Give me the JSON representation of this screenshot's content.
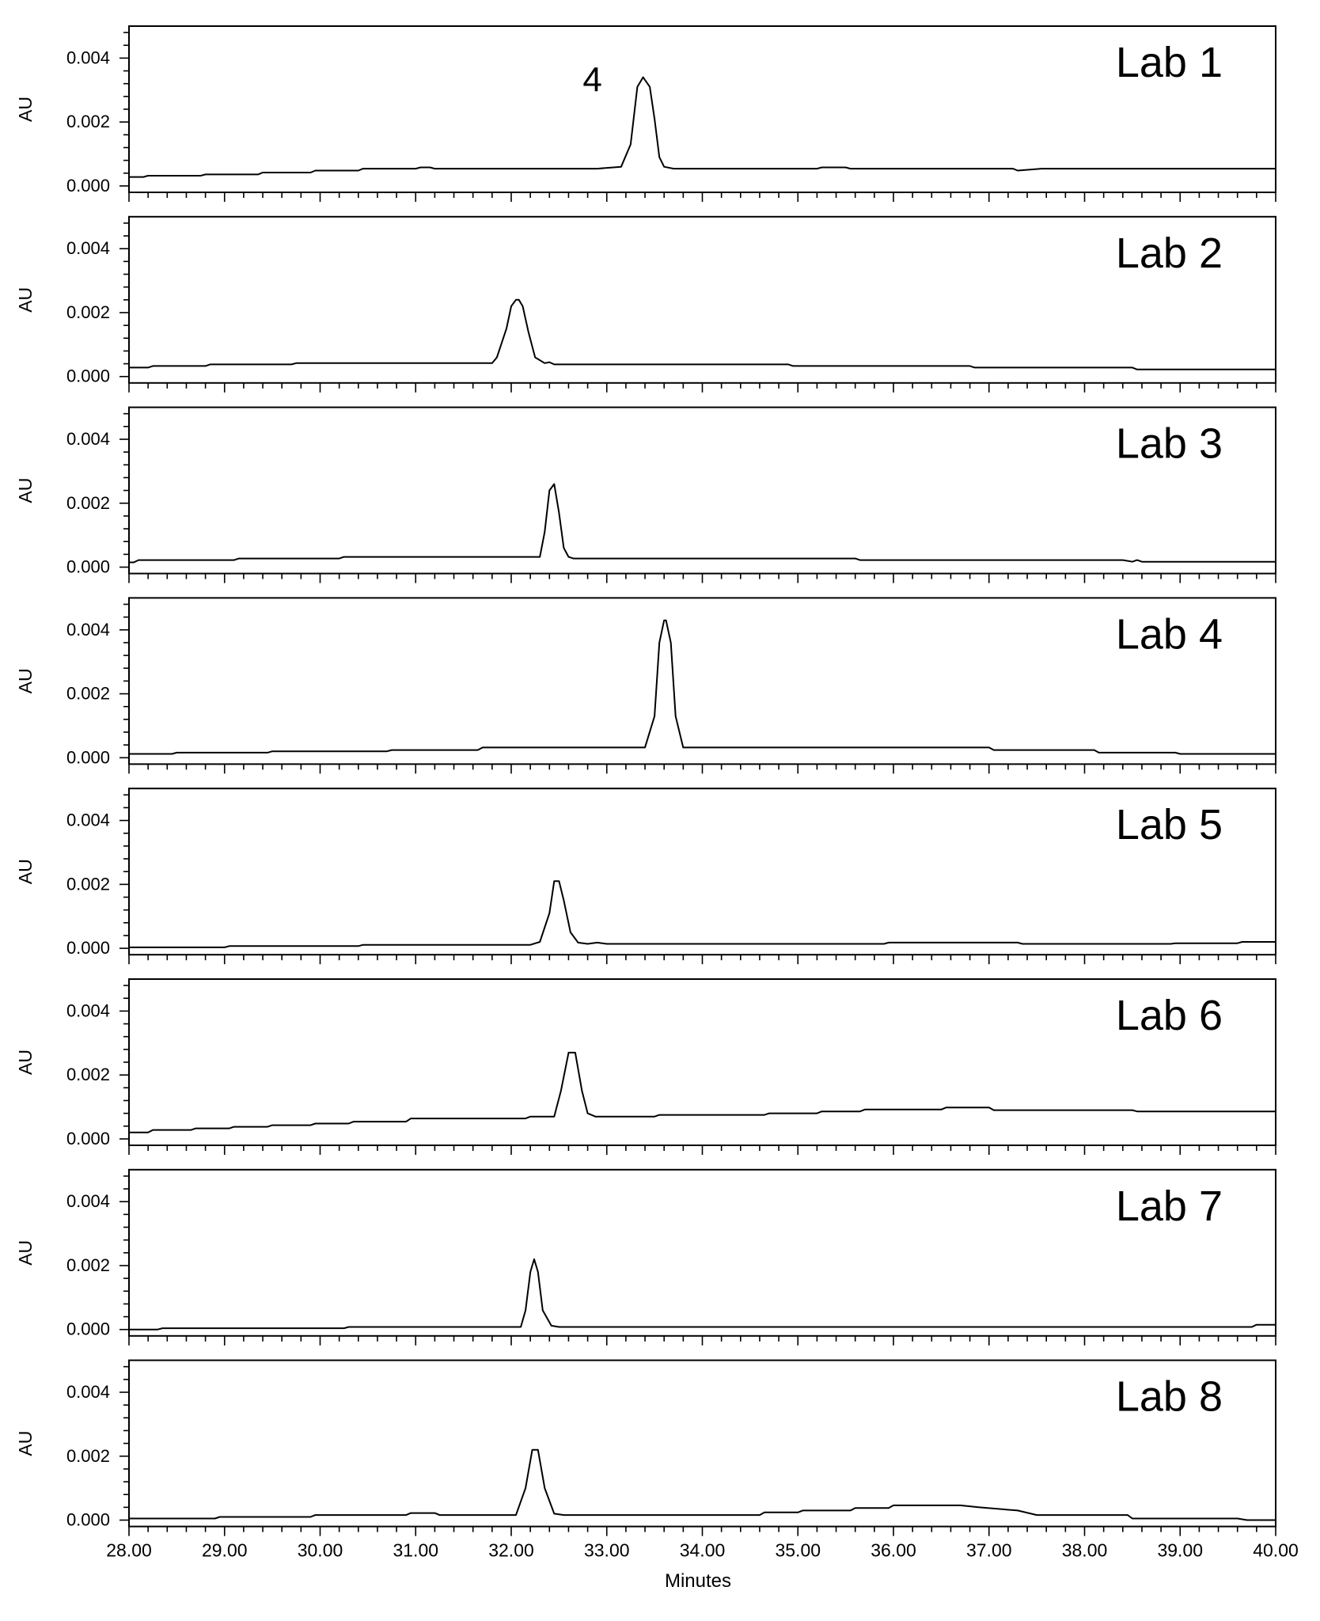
{
  "chart_data": {
    "type": "line",
    "xlabel": "Minutes",
    "ylabel": "AU",
    "xlim": [
      28.0,
      40.0
    ],
    "ylim": [
      -0.0002,
      0.005
    ],
    "x_ticks": [
      28.0,
      29.0,
      30.0,
      31.0,
      32.0,
      33.0,
      34.0,
      35.0,
      36.0,
      37.0,
      38.0,
      39.0,
      40.0
    ],
    "x_tick_labels": [
      "28.00",
      "29.00",
      "30.00",
      "31.00",
      "32.00",
      "33.00",
      "34.00",
      "35.00",
      "36.00",
      "37.00",
      "38.00",
      "39.00",
      "40.00"
    ],
    "y_ticks": [
      0.0,
      0.002,
      0.004
    ],
    "y_tick_labels": [
      "0.000",
      "0.002",
      "0.004"
    ],
    "grid": false,
    "line_color": "#000000",
    "series": [
      {
        "name": "Lab 1",
        "x": [
          28.0,
          28.15,
          28.2,
          28.75,
          28.8,
          29.35,
          29.4,
          29.9,
          29.95,
          30.4,
          30.45,
          31.0,
          31.05,
          31.15,
          31.2,
          32.2,
          32.9,
          33.15,
          33.25,
          33.32,
          33.38,
          33.45,
          33.5,
          33.55,
          33.6,
          33.7,
          35.2,
          35.25,
          35.5,
          35.55,
          37.25,
          37.3,
          37.55,
          38.0,
          40.0
        ],
        "y": [
          0.00028,
          0.00028,
          0.00032,
          0.00032,
          0.00036,
          0.00036,
          0.00042,
          0.00042,
          0.00048,
          0.00048,
          0.00054,
          0.00054,
          0.00058,
          0.00058,
          0.00054,
          0.00054,
          0.00054,
          0.0006,
          0.0013,
          0.0031,
          0.0034,
          0.0031,
          0.0021,
          0.0009,
          0.0006,
          0.00054,
          0.00054,
          0.00058,
          0.00058,
          0.00054,
          0.00054,
          0.00048,
          0.00054,
          0.00054,
          0.00054
        ]
      },
      {
        "name": "Lab 2",
        "x": [
          28.0,
          28.2,
          28.25,
          28.8,
          28.85,
          29.7,
          29.75,
          31.8,
          31.85,
          31.95,
          32.0,
          32.05,
          32.08,
          32.12,
          32.18,
          32.25,
          32.35,
          32.4,
          32.45,
          34.9,
          34.95,
          36.8,
          36.85,
          38.5,
          38.55,
          40.0
        ],
        "y": [
          0.00028,
          0.00028,
          0.00033,
          0.00033,
          0.00038,
          0.00038,
          0.00042,
          0.00042,
          0.0006,
          0.0015,
          0.0022,
          0.0024,
          0.0024,
          0.0022,
          0.0014,
          0.0006,
          0.00042,
          0.00045,
          0.00038,
          0.00038,
          0.00033,
          0.00033,
          0.00028,
          0.00028,
          0.00022,
          0.00022
        ]
      },
      {
        "name": "Lab 3",
        "x": [
          28.0,
          28.05,
          28.1,
          29.1,
          29.15,
          30.2,
          30.25,
          32.3,
          32.35,
          32.4,
          32.45,
          32.5,
          32.55,
          32.6,
          32.65,
          35.6,
          35.65,
          38.4,
          38.5,
          38.55,
          38.6,
          40.0
        ],
        "y": [
          0.00015,
          0.00015,
          0.00022,
          0.00022,
          0.00027,
          0.00027,
          0.00032,
          0.00032,
          0.0011,
          0.0024,
          0.0026,
          0.0017,
          0.0006,
          0.00032,
          0.00027,
          0.00027,
          0.00022,
          0.00022,
          0.00017,
          0.00022,
          0.00017,
          0.00017
        ]
      },
      {
        "name": "Lab 4",
        "x": [
          28.0,
          28.45,
          28.5,
          29.45,
          29.5,
          30.7,
          30.75,
          31.65,
          31.7,
          33.4,
          33.5,
          33.55,
          33.6,
          33.62,
          33.67,
          33.72,
          33.8,
          37.0,
          37.05,
          38.1,
          38.15,
          38.95,
          39.0,
          40.0
        ],
        "y": [
          0.00012,
          0.00012,
          0.00016,
          0.00016,
          0.0002,
          0.0002,
          0.00024,
          0.00024,
          0.00032,
          0.00032,
          0.0013,
          0.0036,
          0.0043,
          0.0043,
          0.0036,
          0.0013,
          0.00032,
          0.00032,
          0.00024,
          0.00024,
          0.00016,
          0.00016,
          0.00012,
          0.00012
        ]
      },
      {
        "name": "Lab 5",
        "x": [
          28.0,
          29.0,
          29.05,
          30.4,
          30.45,
          32.2,
          32.3,
          32.4,
          32.45,
          32.5,
          32.55,
          32.62,
          32.7,
          32.8,
          32.9,
          33.0,
          35.9,
          35.95,
          37.3,
          37.35,
          38.9,
          38.95,
          39.6,
          39.65,
          40.0
        ],
        "y": [
          3e-05,
          3e-05,
          7e-05,
          7e-05,
          0.00011,
          0.00011,
          0.0002,
          0.0011,
          0.0021,
          0.0021,
          0.0015,
          0.0005,
          0.00018,
          0.00014,
          0.00018,
          0.00014,
          0.00014,
          0.00018,
          0.00018,
          0.00014,
          0.00014,
          0.00016,
          0.00016,
          0.0002,
          0.0002
        ]
      },
      {
        "name": "Lab 6",
        "x": [
          28.0,
          28.2,
          28.25,
          28.65,
          28.7,
          29.05,
          29.1,
          29.45,
          29.5,
          29.9,
          29.95,
          30.3,
          30.35,
          30.9,
          30.95,
          32.15,
          32.2,
          32.45,
          32.52,
          32.6,
          32.67,
          32.74,
          32.8,
          32.88,
          33.5,
          33.55,
          34.65,
          34.7,
          35.2,
          35.25,
          35.65,
          35.7,
          36.5,
          36.55,
          37.0,
          37.05,
          38.5,
          38.55,
          40.0
        ],
        "y": [
          0.0002,
          0.0002,
          0.00028,
          0.00028,
          0.00033,
          0.00033,
          0.00038,
          0.00038,
          0.00043,
          0.00043,
          0.00048,
          0.00048,
          0.00054,
          0.00054,
          0.00064,
          0.00064,
          0.0007,
          0.0007,
          0.0015,
          0.0027,
          0.0027,
          0.0015,
          0.0008,
          0.0007,
          0.0007,
          0.00075,
          0.00075,
          0.0008,
          0.0008,
          0.00086,
          0.00086,
          0.00092,
          0.00092,
          0.00098,
          0.00098,
          0.0009,
          0.0009,
          0.00086,
          0.00086
        ]
      },
      {
        "name": "Lab 7",
        "x": [
          28.0,
          28.3,
          28.35,
          30.25,
          30.3,
          32.1,
          32.15,
          32.2,
          32.24,
          32.28,
          32.33,
          32.42,
          32.5,
          39.75,
          39.8,
          40.0
        ],
        "y": [
          0.0,
          0.0,
          4e-05,
          4e-05,
          8e-05,
          8e-05,
          0.0006,
          0.0018,
          0.0022,
          0.0018,
          0.0006,
          0.00012,
          8e-05,
          8e-05,
          0.00015,
          0.00015
        ]
      },
      {
        "name": "Lab 8",
        "x": [
          28.0,
          28.9,
          28.95,
          29.9,
          29.95,
          30.9,
          30.95,
          31.2,
          31.25,
          32.05,
          32.15,
          32.22,
          32.28,
          32.35,
          32.45,
          32.55,
          34.6,
          34.65,
          35.0,
          35.05,
          35.55,
          35.6,
          35.95,
          36.0,
          36.7,
          36.9,
          37.3,
          37.5,
          38.45,
          38.5,
          39.6,
          39.7,
          40.0
        ],
        "y": [
          5e-05,
          5e-05,
          0.0001,
          0.0001,
          0.00016,
          0.00016,
          0.00022,
          0.00022,
          0.00016,
          0.00016,
          0.001,
          0.0022,
          0.0022,
          0.001,
          0.0002,
          0.00016,
          0.00016,
          0.00024,
          0.00024,
          0.0003,
          0.0003,
          0.00038,
          0.00038,
          0.00046,
          0.00046,
          0.0004,
          0.0003,
          0.00016,
          0.00016,
          5e-05,
          5e-05,
          0.0,
          0.0
        ]
      }
    ],
    "panel_labels": [
      "Lab 1",
      "Lab 2",
      "Lab 3",
      "Lab 4",
      "Lab 5",
      "Lab 6",
      "Lab 7",
      "Lab 8"
    ],
    "annotations": [
      {
        "panel": 0,
        "text": "4",
        "x": 32.85,
        "y": 0.0034
      }
    ]
  }
}
